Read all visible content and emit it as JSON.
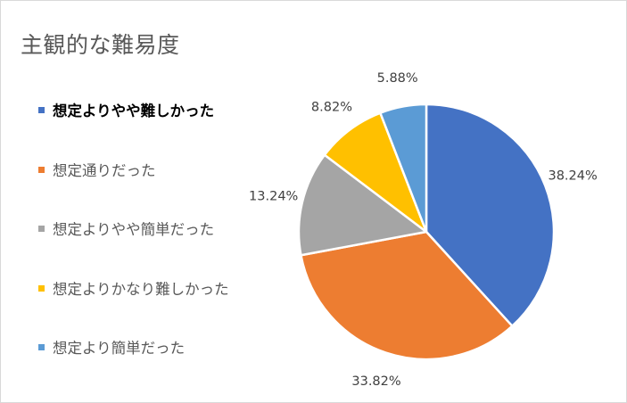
{
  "chart_data": {
    "type": "pie",
    "title": "主観的な難易度",
    "categories": [
      "想定よりやや難しかった",
      "想定通りだった",
      "想定よりやや簡単だった",
      "想定よりかなり難しかった",
      "想定より簡単だった"
    ],
    "values": [
      38.24,
      33.82,
      13.24,
      8.82,
      5.88
    ],
    "labels": [
      "38.24%",
      "33.82%",
      "13.24%",
      "8.82%",
      "5.88%"
    ],
    "colors": [
      "#4472c4",
      "#ed7d31",
      "#a5a5a5",
      "#ffc000",
      "#5b9bd5"
    ],
    "legend_position": "left",
    "selected_legend_index": 0
  }
}
